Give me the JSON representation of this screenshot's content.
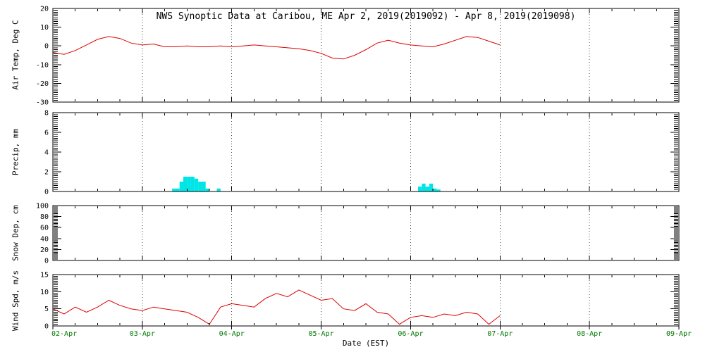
{
  "title": "NWS Synoptic Data at Caribou, ME  Apr  2, 2019(2019092) - Apr  8, 2019(2019098)",
  "x_axis": {
    "label": "Date (EST)",
    "tick_labels": [
      "02-Apr",
      "03-Apr",
      "04-Apr",
      "05-Apr",
      "06-Apr",
      "07-Apr",
      "08-Apr",
      "09-Apr"
    ],
    "span_days": 7,
    "gridline_days": [
      1,
      2,
      3,
      4,
      5,
      6
    ]
  },
  "colors": {
    "trace": "#dd0000",
    "precip_bar": "#00e5e5",
    "frame": "#000000",
    "grid": "#444444",
    "date_labels": "#007700",
    "text": "#000000",
    "background": "#ffffff"
  },
  "chart_data": [
    {
      "name": "air-temp",
      "type": "line",
      "ylabel": "Air Temp, Deg C",
      "ylim": [
        -30,
        20
      ],
      "yticks": [
        -30,
        -20,
        -10,
        0,
        10,
        20
      ],
      "ytick_minor": 1,
      "start_hour": 0,
      "step_hours": 3,
      "values": [
        -3.5,
        -4.5,
        -2.5,
        0.5,
        3.5,
        5,
        4,
        1.5,
        0.5,
        1,
        -0.5,
        -0.5,
        0,
        -0.5,
        -0.5,
        0,
        -0.5,
        0,
        0.5,
        0,
        -0.5,
        -1,
        -1.5,
        -2.5,
        -4,
        -6.5,
        -7,
        -5,
        -2,
        1.5,
        3,
        1.5,
        0.5,
        0,
        -0.5,
        1,
        3,
        5,
        4.5,
        2.5,
        0.5
      ]
    },
    {
      "name": "precip",
      "type": "bar",
      "ylabel": "Precip, mm",
      "ylim": [
        0,
        8
      ],
      "yticks": [
        0,
        2,
        4,
        6,
        8
      ],
      "ytick_minor": 0.2,
      "bar_width_hours": 1,
      "bars": [
        [
          32,
          0.3
        ],
        [
          33,
          0.3
        ],
        [
          34,
          1.0
        ],
        [
          35,
          1.5
        ],
        [
          36,
          1.5
        ],
        [
          37,
          1.5
        ],
        [
          38,
          1.3
        ],
        [
          39,
          1.0
        ],
        [
          40,
          1.0
        ],
        [
          41,
          0.3
        ],
        [
          44,
          0.3
        ],
        [
          98,
          0.5
        ],
        [
          99,
          0.8
        ],
        [
          100,
          0.5
        ],
        [
          101,
          0.8
        ],
        [
          102,
          0.3
        ],
        [
          103,
          0.2
        ]
      ]
    },
    {
      "name": "snow-depth",
      "type": "line",
      "ylabel": "Snow Dep, cm",
      "ylim": [
        0,
        100
      ],
      "yticks": [
        0,
        20,
        40,
        60,
        80,
        100
      ],
      "ytick_minor": 2.5,
      "start_hour": 0,
      "step_hours": 3,
      "values": []
    },
    {
      "name": "wind-speed",
      "type": "line",
      "ylabel": "Wind Spd, m/s",
      "ylim": [
        0,
        15
      ],
      "yticks": [
        0,
        5,
        10,
        15
      ],
      "ytick_minor": 0.5,
      "start_hour": 0,
      "step_hours": 3,
      "values": [
        5,
        3.5,
        5.5,
        4,
        5.5,
        7.5,
        6,
        5,
        4.5,
        5.5,
        5,
        4.5,
        4,
        2.5,
        0.5,
        5.5,
        6.5,
        6,
        5.5,
        8,
        9.5,
        8.5,
        10.5,
        9,
        7.5,
        8,
        5,
        4.5,
        6.5,
        4,
        3.5,
        0.5,
        2.5,
        3,
        2.5,
        3.5,
        3,
        4,
        3.5,
        0.5,
        3
      ]
    }
  ]
}
